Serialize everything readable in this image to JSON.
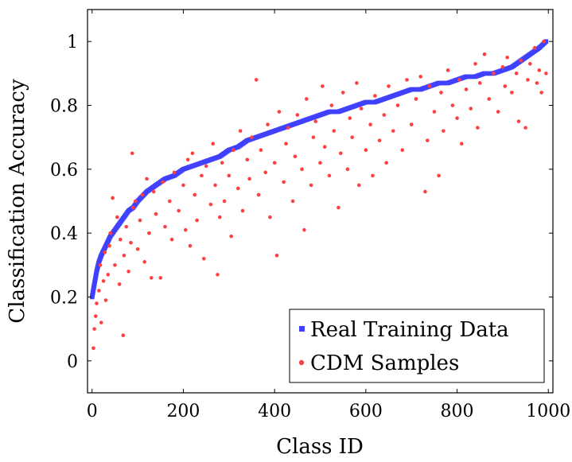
{
  "chart_data": {
    "type": "scatter",
    "title": "",
    "xlabel": "Class ID",
    "ylabel": "Classification Accuracy",
    "xlim": [
      -10,
      1010
    ],
    "ylim": [
      -0.1,
      1.1
    ],
    "xticks": [
      0,
      200,
      400,
      600,
      800,
      1000
    ],
    "yticks": [
      0,
      0.2,
      0.4,
      0.6,
      0.8,
      1
    ],
    "grid": false,
    "legend_position": "bottom-right",
    "series": [
      {
        "name": "Real Training Data",
        "color": "#4040ff",
        "marker": "square",
        "points": [
          [
            0,
            0.2
          ],
          [
            5,
            0.24
          ],
          [
            10,
            0.28
          ],
          [
            15,
            0.31
          ],
          [
            20,
            0.33
          ],
          [
            30,
            0.36
          ],
          [
            40,
            0.39
          ],
          [
            50,
            0.41
          ],
          [
            60,
            0.43
          ],
          [
            70,
            0.45
          ],
          [
            80,
            0.47
          ],
          [
            90,
            0.48
          ],
          [
            100,
            0.5
          ],
          [
            120,
            0.53
          ],
          [
            140,
            0.55
          ],
          [
            160,
            0.57
          ],
          [
            180,
            0.58
          ],
          [
            200,
            0.6
          ],
          [
            220,
            0.61
          ],
          [
            240,
            0.62
          ],
          [
            260,
            0.63
          ],
          [
            280,
            0.64
          ],
          [
            300,
            0.66
          ],
          [
            320,
            0.67
          ],
          [
            340,
            0.69
          ],
          [
            360,
            0.7
          ],
          [
            380,
            0.71
          ],
          [
            400,
            0.72
          ],
          [
            420,
            0.73
          ],
          [
            440,
            0.74
          ],
          [
            460,
            0.75
          ],
          [
            480,
            0.76
          ],
          [
            500,
            0.77
          ],
          [
            520,
            0.78
          ],
          [
            540,
            0.78
          ],
          [
            560,
            0.79
          ],
          [
            580,
            0.8
          ],
          [
            600,
            0.81
          ],
          [
            620,
            0.81
          ],
          [
            640,
            0.82
          ],
          [
            660,
            0.83
          ],
          [
            680,
            0.84
          ],
          [
            700,
            0.85
          ],
          [
            720,
            0.85
          ],
          [
            740,
            0.86
          ],
          [
            760,
            0.87
          ],
          [
            780,
            0.87
          ],
          [
            800,
            0.88
          ],
          [
            820,
            0.89
          ],
          [
            840,
            0.89
          ],
          [
            860,
            0.9
          ],
          [
            880,
            0.9
          ],
          [
            900,
            0.91
          ],
          [
            920,
            0.92
          ],
          [
            940,
            0.94
          ],
          [
            960,
            0.96
          ],
          [
            980,
            0.98
          ],
          [
            995,
            1.0
          ]
        ]
      },
      {
        "name": "CDM Samples",
        "color": "#ff4040",
        "marker": "circle",
        "points": [
          [
            3,
            0.04
          ],
          [
            5,
            0.1
          ],
          [
            8,
            0.14
          ],
          [
            10,
            0.18
          ],
          [
            15,
            0.22
          ],
          [
            18,
            0.3
          ],
          [
            20,
            0.12
          ],
          [
            25,
            0.25
          ],
          [
            28,
            0.34
          ],
          [
            30,
            0.19
          ],
          [
            35,
            0.27
          ],
          [
            38,
            0.36
          ],
          [
            40,
            0.4
          ],
          [
            45,
            0.51
          ],
          [
            50,
            0.3
          ],
          [
            55,
            0.45
          ],
          [
            60,
            0.24
          ],
          [
            62,
            0.38
          ],
          [
            68,
            0.08
          ],
          [
            70,
            0.33
          ],
          [
            75,
            0.42
          ],
          [
            80,
            0.28
          ],
          [
            85,
            0.37
          ],
          [
            88,
            0.65
          ],
          [
            90,
            0.48
          ],
          [
            95,
            0.5
          ],
          [
            100,
            0.35
          ],
          [
            105,
            0.44
          ],
          [
            110,
            0.52
          ],
          [
            115,
            0.31
          ],
          [
            120,
            0.57
          ],
          [
            125,
            0.4
          ],
          [
            130,
            0.26
          ],
          [
            135,
            0.53
          ],
          [
            140,
            0.46
          ],
          [
            150,
            0.26
          ],
          [
            155,
            0.56
          ],
          [
            160,
            0.42
          ],
          [
            170,
            0.5
          ],
          [
            175,
            0.38
          ],
          [
            180,
            0.59
          ],
          [
            190,
            0.47
          ],
          [
            200,
            0.55
          ],
          [
            205,
            0.41
          ],
          [
            210,
            0.63
          ],
          [
            215,
            0.36
          ],
          [
            220,
            0.65
          ],
          [
            225,
            0.52
          ],
          [
            230,
            0.44
          ],
          [
            240,
            0.58
          ],
          [
            245,
            0.32
          ],
          [
            250,
            0.61
          ],
          [
            260,
            0.49
          ],
          [
            265,
            0.68
          ],
          [
            270,
            0.55
          ],
          [
            275,
            0.27
          ],
          [
            280,
            0.45
          ],
          [
            285,
            0.62
          ],
          [
            290,
            0.5
          ],
          [
            300,
            0.58
          ],
          [
            305,
            0.39
          ],
          [
            310,
            0.66
          ],
          [
            320,
            0.54
          ],
          [
            325,
            0.72
          ],
          [
            330,
            0.47
          ],
          [
            340,
            0.63
          ],
          [
            345,
            0.57
          ],
          [
            350,
            0.7
          ],
          [
            360,
            0.88
          ],
          [
            365,
            0.52
          ],
          [
            370,
            0.66
          ],
          [
            380,
            0.59
          ],
          [
            385,
            0.74
          ],
          [
            390,
            0.45
          ],
          [
            400,
            0.62
          ],
          [
            405,
            0.33
          ],
          [
            410,
            0.78
          ],
          [
            420,
            0.56
          ],
          [
            425,
            0.68
          ],
          [
            430,
            0.73
          ],
          [
            440,
            0.5
          ],
          [
            445,
            0.64
          ],
          [
            450,
            0.77
          ],
          [
            460,
            0.6
          ],
          [
            465,
            0.41
          ],
          [
            470,
            0.82
          ],
          [
            480,
            0.55
          ],
          [
            485,
            0.7
          ],
          [
            490,
            0.75
          ],
          [
            500,
            0.62
          ],
          [
            505,
            0.86
          ],
          [
            510,
            0.67
          ],
          [
            520,
            0.58
          ],
          [
            525,
            0.8
          ],
          [
            530,
            0.72
          ],
          [
            540,
            0.48
          ],
          [
            545,
            0.65
          ],
          [
            550,
            0.84
          ],
          [
            560,
            0.6
          ],
          [
            565,
            0.76
          ],
          [
            570,
            0.7
          ],
          [
            580,
            0.87
          ],
          [
            585,
            0.55
          ],
          [
            590,
            0.79
          ],
          [
            600,
            0.66
          ],
          [
            610,
            0.74
          ],
          [
            615,
            0.58
          ],
          [
            620,
            0.83
          ],
          [
            630,
            0.69
          ],
          [
            640,
            0.77
          ],
          [
            645,
            0.62
          ],
          [
            650,
            0.86
          ],
          [
            660,
            0.72
          ],
          [
            670,
            0.8
          ],
          [
            680,
            0.66
          ],
          [
            690,
            0.88
          ],
          [
            700,
            0.74
          ],
          [
            710,
            0.82
          ],
          [
            720,
            0.89
          ],
          [
            730,
            0.53
          ],
          [
            735,
            0.69
          ],
          [
            740,
            0.86
          ],
          [
            750,
            0.78
          ],
          [
            760,
            0.58
          ],
          [
            765,
            0.84
          ],
          [
            770,
            0.72
          ],
          [
            780,
            0.91
          ],
          [
            790,
            0.8
          ],
          [
            800,
            0.76
          ],
          [
            805,
            0.88
          ],
          [
            810,
            0.68
          ],
          [
            820,
            0.85
          ],
          [
            830,
            0.79
          ],
          [
            840,
            0.93
          ],
          [
            845,
            0.73
          ],
          [
            850,
            0.87
          ],
          [
            860,
            0.96
          ],
          [
            870,
            0.82
          ],
          [
            880,
            0.9
          ],
          [
            890,
            0.78
          ],
          [
            900,
            0.92
          ],
          [
            905,
            0.86
          ],
          [
            910,
            0.95
          ],
          [
            920,
            0.84
          ],
          [
            930,
            0.9
          ],
          [
            935,
            0.75
          ],
          [
            940,
            0.94
          ],
          [
            950,
            0.73
          ],
          [
            955,
            0.88
          ],
          [
            960,
            0.93
          ],
          [
            970,
            0.98
          ],
          [
            975,
            0.87
          ],
          [
            980,
            0.91
          ],
          [
            985,
            0.84
          ],
          [
            990,
            1.0
          ],
          [
            995,
            0.9
          ]
        ]
      }
    ]
  }
}
